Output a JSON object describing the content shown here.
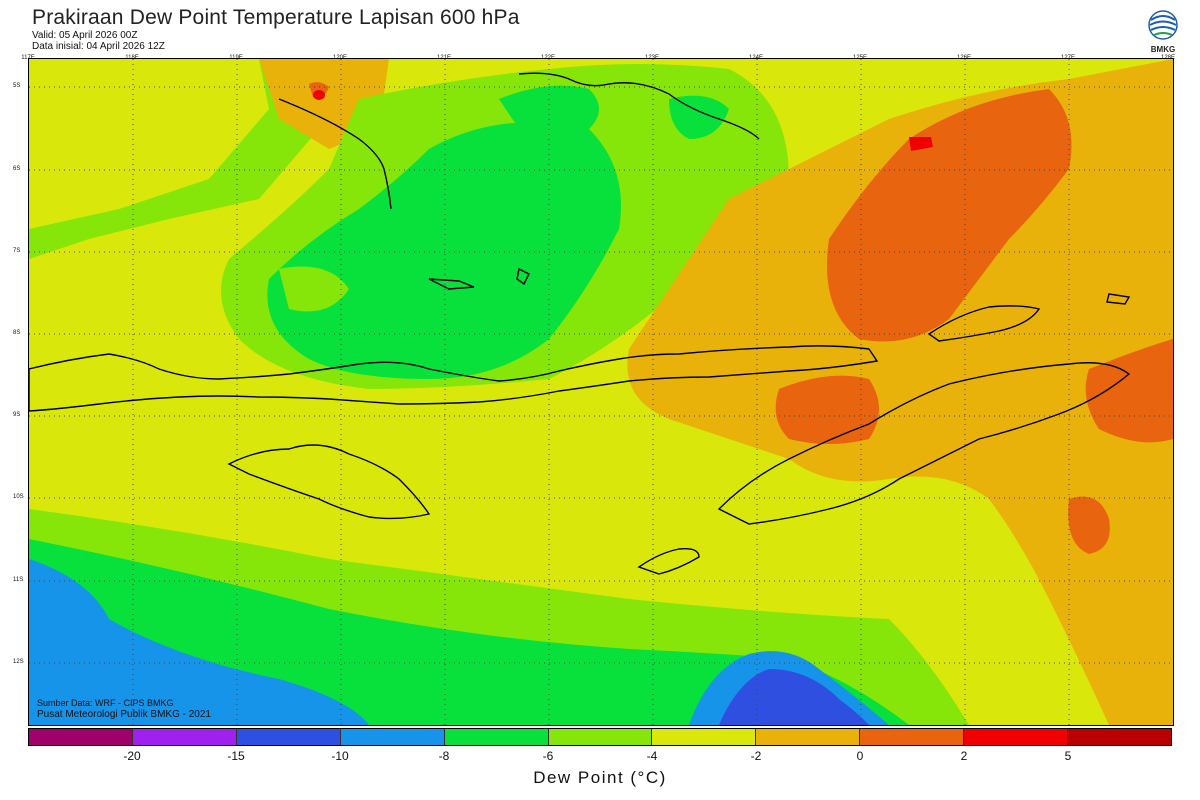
{
  "header": {
    "title": "Prakiraan Dew Point Temperature Lapisan 600 hPa",
    "valid": "Valid: 05 April 2026 00Z",
    "init": "Data inisial: 04 April 2026 12Z"
  },
  "logo": {
    "text": "BMKG"
  },
  "axes": {
    "lon_labels": [
      "117E",
      "118E",
      "119E",
      "120E",
      "121E",
      "122E",
      "123E",
      "124E",
      "125E",
      "126E",
      "127E",
      "128E"
    ],
    "lat_labels": [
      "5S",
      "6S",
      "7S",
      "8S",
      "9S",
      "10S",
      "11S",
      "12S"
    ]
  },
  "colorbar": {
    "colors": [
      "#a0006a",
      "#a020ee",
      "#2e4fe0",
      "#1594ea",
      "#08e03c",
      "#86e60a",
      "#d9e80a",
      "#e8b20a",
      "#e8640f",
      "#f00000",
      "#b80000"
    ],
    "tick_labels": [
      "-20",
      "-15",
      "-10",
      "-8",
      "-6",
      "-4",
      "-2",
      "0",
      "2",
      "5"
    ],
    "label": "Dew Point (°C)"
  },
  "credits": {
    "source": "Sumber Data: WRF - CIPS BMKG",
    "org": "Pusat Meteorologi Publik BMKG - 2021"
  }
}
